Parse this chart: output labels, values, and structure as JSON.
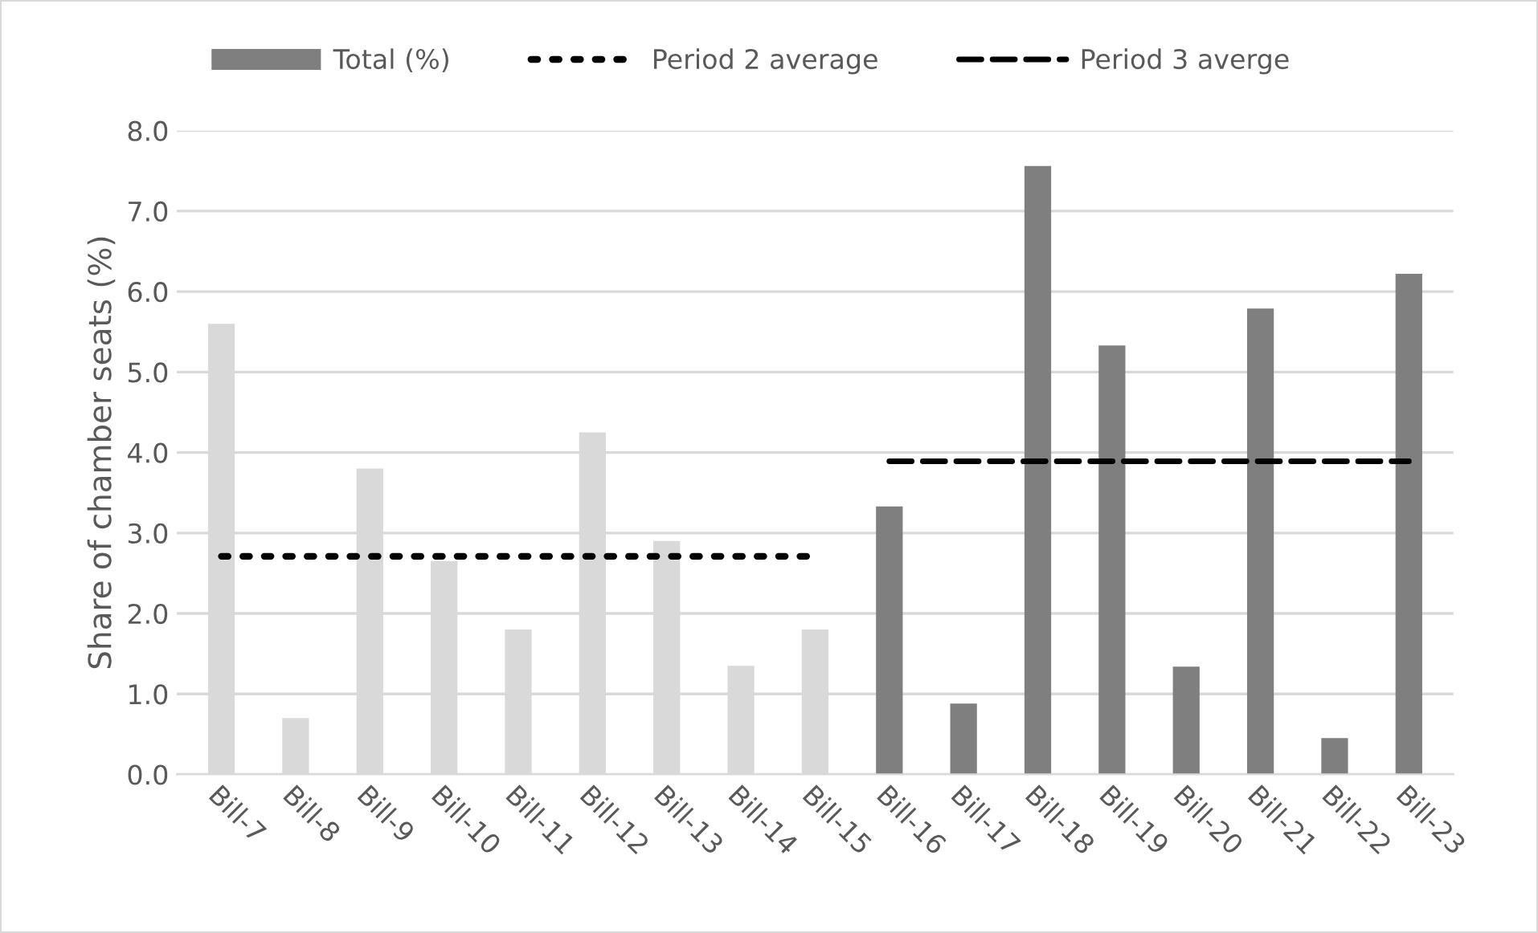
{
  "chart_data": {
    "type": "bar",
    "ylabel": "Share of chamber seats (%)",
    "categories": [
      "Bill-7",
      "Bill-8",
      "Bill-9",
      "Bill-10",
      "Bill-11",
      "Bill-12",
      "Bill-13",
      "Bill-14",
      "Bill-15",
      "Bill-16",
      "Bill-17",
      "Bill-18",
      "Bill-19",
      "Bill-20",
      "Bill-21",
      "Bill-22",
      "Bill-23"
    ],
    "series": [
      {
        "name": "Total (%)",
        "color": "#7f7f7f",
        "colors": [
          "#d9d9d9",
          "#d9d9d9",
          "#d9d9d9",
          "#d9d9d9",
          "#d9d9d9",
          "#d9d9d9",
          "#d9d9d9",
          "#d9d9d9",
          "#d9d9d9",
          "#7f7f7f",
          "#7f7f7f",
          "#7f7f7f",
          "#7f7f7f",
          "#7f7f7f",
          "#7f7f7f",
          "#7f7f7f",
          "#7f7f7f"
        ],
        "values": [
          5.6,
          0.7,
          3.8,
          2.65,
          1.8,
          4.25,
          2.9,
          1.35,
          1.8,
          3.33,
          0.88,
          7.56,
          5.33,
          1.34,
          5.79,
          0.45,
          6.22
        ]
      },
      {
        "name": "Period 2 average",
        "type": "line",
        "color": "#000000",
        "line_style": "dotted",
        "values": [
          2.71,
          2.71,
          2.71,
          2.71,
          2.71,
          2.71,
          2.71,
          2.71,
          2.71,
          null,
          null,
          null,
          null,
          null,
          null,
          null,
          null
        ]
      },
      {
        "name": "Period 3 averge",
        "type": "line",
        "color": "#000000",
        "line_style": "dashed",
        "values": [
          null,
          null,
          null,
          null,
          null,
          null,
          null,
          null,
          null,
          3.89,
          3.89,
          3.89,
          3.89,
          3.89,
          3.89,
          3.89,
          3.89
        ]
      }
    ],
    "ylim": [
      0,
      8
    ],
    "yticks": [
      {
        "value": 0,
        "label": "0.0"
      },
      {
        "value": 1,
        "label": "1.0"
      },
      {
        "value": 2,
        "label": "2.0"
      },
      {
        "value": 3,
        "label": "3.0"
      },
      {
        "value": 4,
        "label": "4.0"
      },
      {
        "value": 5,
        "label": "5.0"
      },
      {
        "value": 6,
        "label": "6.0"
      },
      {
        "value": 7,
        "label": "7.0"
      },
      {
        "value": 8,
        "label": "8.0"
      }
    ],
    "grid": "y",
    "legend": "top"
  }
}
